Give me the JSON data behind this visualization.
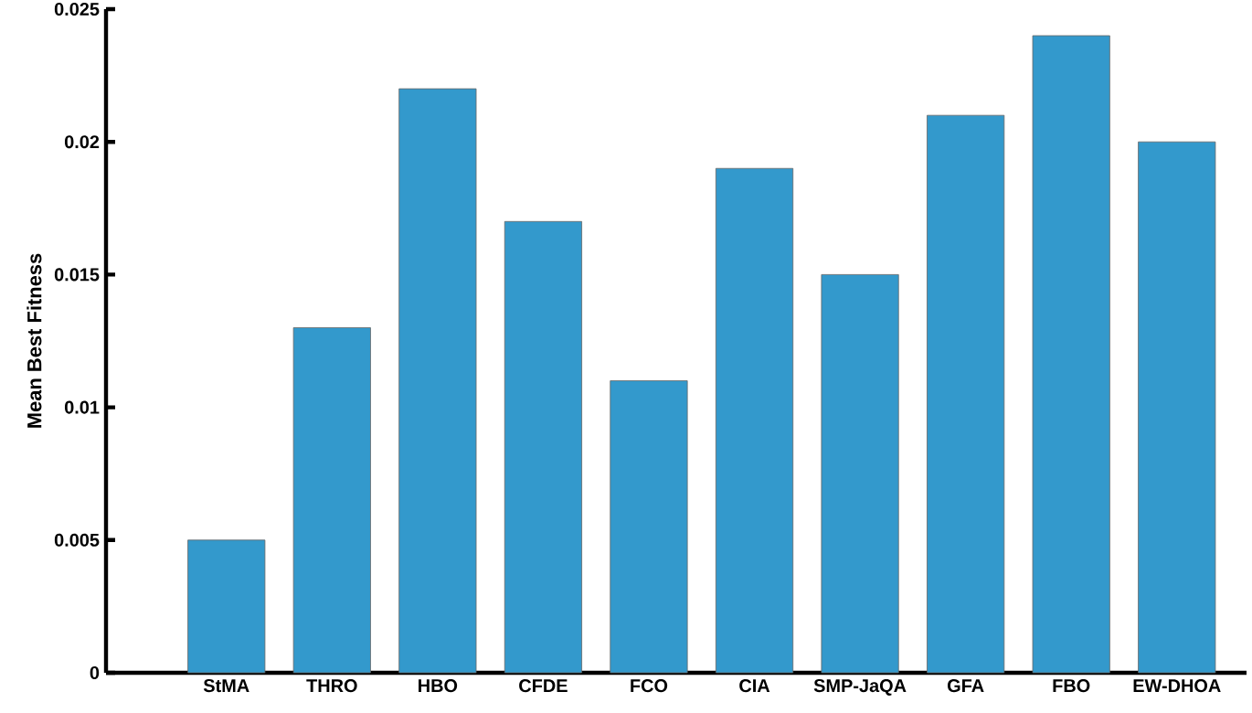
{
  "chart_data": {
    "type": "bar",
    "ylabel": "Mean Best Fitness",
    "categories": [
      "StMA",
      "THRO",
      "HBO",
      "CFDE",
      "FCO",
      "CIA",
      "SMP-JaQA",
      "GFA",
      "FBO",
      "EW-DHOA"
    ],
    "values": [
      0.005,
      0.013,
      0.022,
      0.017,
      0.011,
      0.019,
      0.015,
      0.021,
      0.024,
      0.02
    ],
    "color": "#3399cc",
    "ylim": [
      0,
      0.025
    ],
    "yticks": [
      0,
      0.005,
      0.01,
      0.015,
      0.02,
      0.025
    ],
    "grid": false
  }
}
